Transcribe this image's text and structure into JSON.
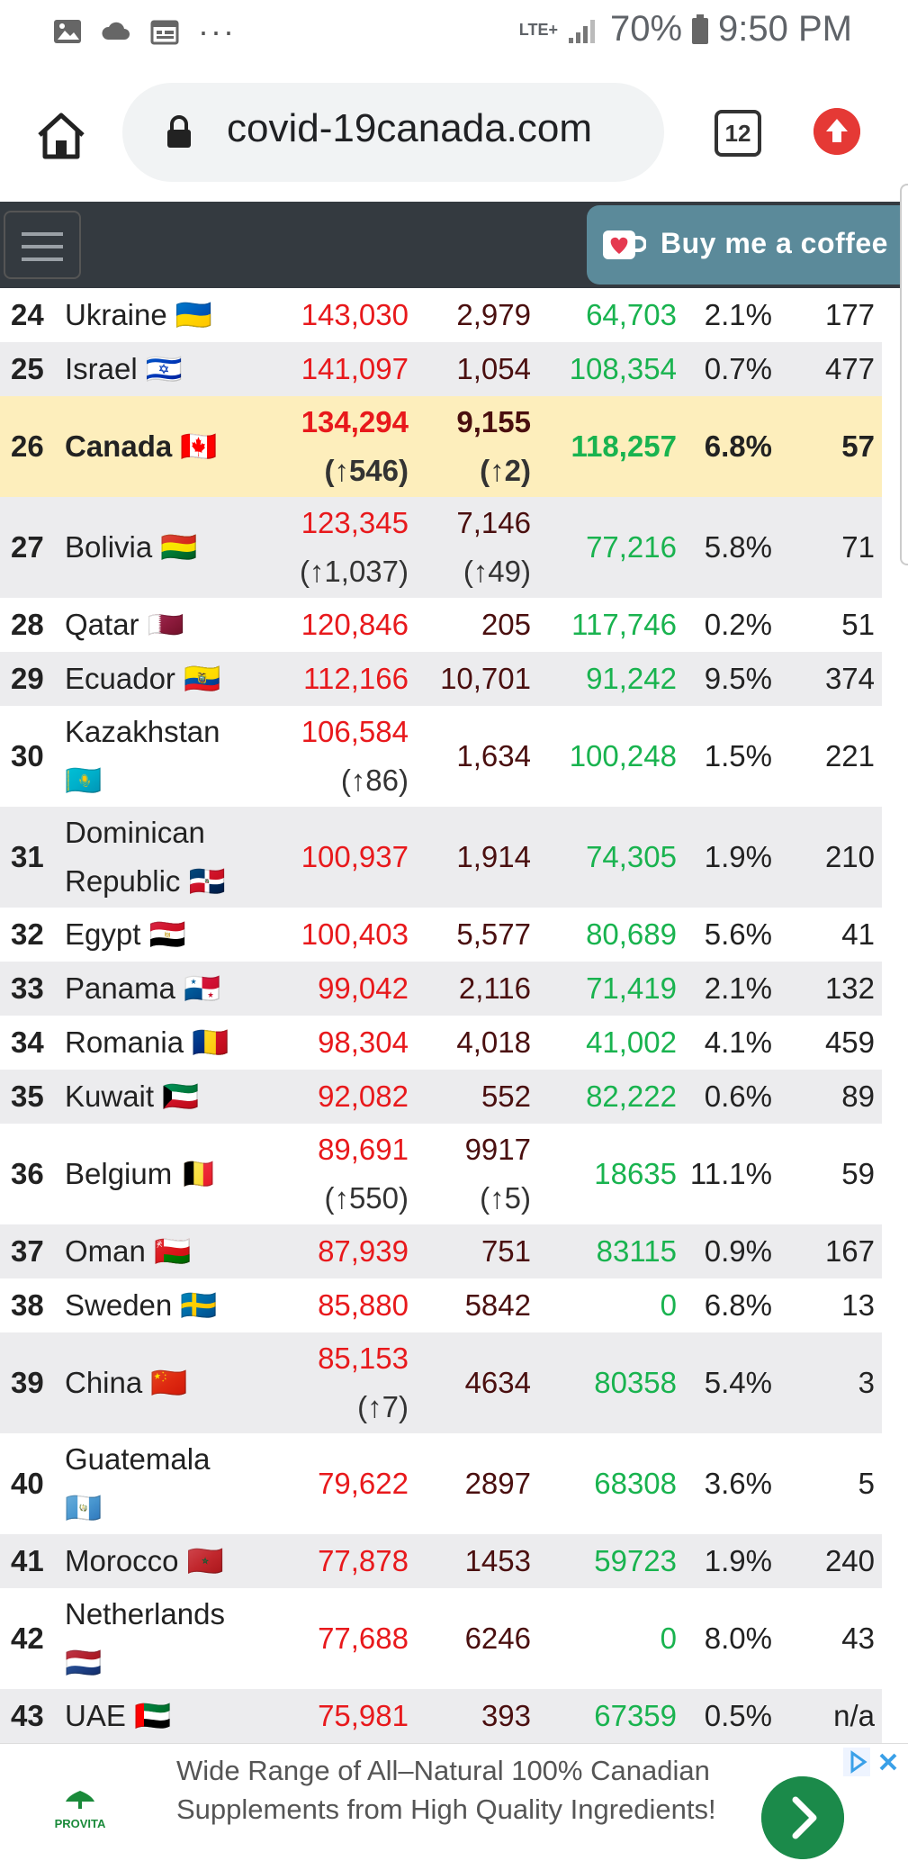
{
  "status_bar": {
    "network": "LTE+",
    "battery": "70%",
    "time": "9:50 PM"
  },
  "browser": {
    "url": "covid-19canada.com",
    "tab_count": "12"
  },
  "navbar": {
    "coffee_label": "Buy me a coffee"
  },
  "rows": [
    {
      "rank": "24",
      "country": "Ukraine 🇺🇦",
      "cases": "143,030",
      "deaths": "2,979",
      "recovered": "64,703",
      "rate": "2.1%",
      "tests": "177"
    },
    {
      "rank": "25",
      "country": "Israel 🇮🇱",
      "cases": "141,097",
      "deaths": "1,054",
      "recovered": "108,354",
      "rate": "0.7%",
      "tests": "477"
    },
    {
      "rank": "26",
      "country": "Canada 🇨🇦",
      "cases": "134,294",
      "cases_delta": "(↑546)",
      "deaths": "9,155",
      "deaths_delta": "(↑2)",
      "recovered": "118,257",
      "rate": "6.8%",
      "tests": "57"
    },
    {
      "rank": "27",
      "country": "Bolivia 🇧🇴",
      "cases": "123,345",
      "cases_delta": "(↑1,037)",
      "deaths": "7,146",
      "deaths_delta": "(↑49)",
      "recovered": "77,216",
      "rate": "5.8%",
      "tests": "71"
    },
    {
      "rank": "28",
      "country": "Qatar 🇶🇦",
      "cases": "120,846",
      "deaths": "205",
      "recovered": "117,746",
      "rate": "0.2%",
      "tests": "51"
    },
    {
      "rank": "29",
      "country": "Ecuador 🇪🇨",
      "cases": "112,166",
      "deaths": "10,701",
      "recovered": "91,242",
      "rate": "9.5%",
      "tests": "374"
    },
    {
      "rank": "30",
      "country": "Kazakhstan",
      "country2": "🇰🇿",
      "cases": "106,584",
      "cases_delta": "(↑86)",
      "deaths": "1,634",
      "recovered": "100,248",
      "rate": "1.5%",
      "tests": "221"
    },
    {
      "rank": "31",
      "country": "Dominican",
      "country2": "Republic 🇩🇴",
      "cases": "100,937",
      "deaths": "1,914",
      "recovered": "74,305",
      "rate": "1.9%",
      "tests": "210"
    },
    {
      "rank": "32",
      "country": "Egypt 🇪🇬",
      "cases": "100,403",
      "deaths": "5,577",
      "recovered": "80,689",
      "rate": "5.6%",
      "tests": "41"
    },
    {
      "rank": "33",
      "country": "Panama 🇵🇦",
      "cases": "99,042",
      "deaths": "2,116",
      "recovered": "71,419",
      "rate": "2.1%",
      "tests": "132"
    },
    {
      "rank": "34",
      "country": "Romania 🇷🇴",
      "cases": "98,304",
      "deaths": "4,018",
      "recovered": "41,002",
      "rate": "4.1%",
      "tests": "459"
    },
    {
      "rank": "35",
      "country": "Kuwait 🇰🇼",
      "cases": "92,082",
      "deaths": "552",
      "recovered": "82,222",
      "rate": "0.6%",
      "tests": "89"
    },
    {
      "rank": "36",
      "country": "Belgium 🇧🇪",
      "cases": "89,691",
      "cases_delta": "(↑550)",
      "deaths": "9917",
      "deaths_delta": "(↑5)",
      "recovered": "18635",
      "rate": "11.1%",
      "tests": "59"
    },
    {
      "rank": "37",
      "country": "Oman 🇴🇲",
      "cases": "87,939",
      "deaths": "751",
      "recovered": "83115",
      "rate": "0.9%",
      "tests": "167"
    },
    {
      "rank": "38",
      "country": "Sweden 🇸🇪",
      "cases": "85,880",
      "deaths": "5842",
      "recovered": "0",
      "rate": "6.8%",
      "tests": "13"
    },
    {
      "rank": "39",
      "country": "China 🇨🇳",
      "cases": "85,153",
      "cases_delta": "(↑7)",
      "deaths": "4634",
      "recovered": "80358",
      "rate": "5.4%",
      "tests": "3"
    },
    {
      "rank": "40",
      "country": "Guatemala",
      "country2": "🇬🇹",
      "cases": "79,622",
      "deaths": "2897",
      "recovered": "68308",
      "rate": "3.6%",
      "tests": "5"
    },
    {
      "rank": "41",
      "country": "Morocco 🇲🇦",
      "cases": "77,878",
      "deaths": "1453",
      "recovered": "59723",
      "rate": "1.9%",
      "tests": "240"
    },
    {
      "rank": "42",
      "country": "Netherlands",
      "country2": "🇳🇱",
      "cases": "77,688",
      "deaths": "6246",
      "recovered": "0",
      "rate": "8.0%",
      "tests": "43"
    },
    {
      "rank": "43",
      "country": "UAE 🇦🇪",
      "cases": "75,981",
      "deaths": "393",
      "recovered": "67359",
      "rate": "0.5%",
      "tests": "n/a"
    }
  ],
  "ad": {
    "brand": "PROVITA",
    "text": "Wide Range of All–Natural 100% Canadian Supplements from High Quality Ingredients!"
  },
  "colors": {
    "cases": "#e8191c",
    "deaths": "#4a0f0f",
    "recovered": "#19b34f",
    "highlight": "#fdeebc",
    "navbar": "#343a40"
  },
  "icons": [
    "gallery-icon",
    "cloud-icon",
    "calendar-icon",
    "more-icon",
    "signal-icon",
    "battery-icon",
    "home-icon",
    "lock-icon",
    "tab-switcher-icon",
    "update-icon",
    "menu-icon",
    "coffee-cup-icon",
    "ad-choices-icon",
    "close-icon",
    "chevron-right-icon"
  ]
}
